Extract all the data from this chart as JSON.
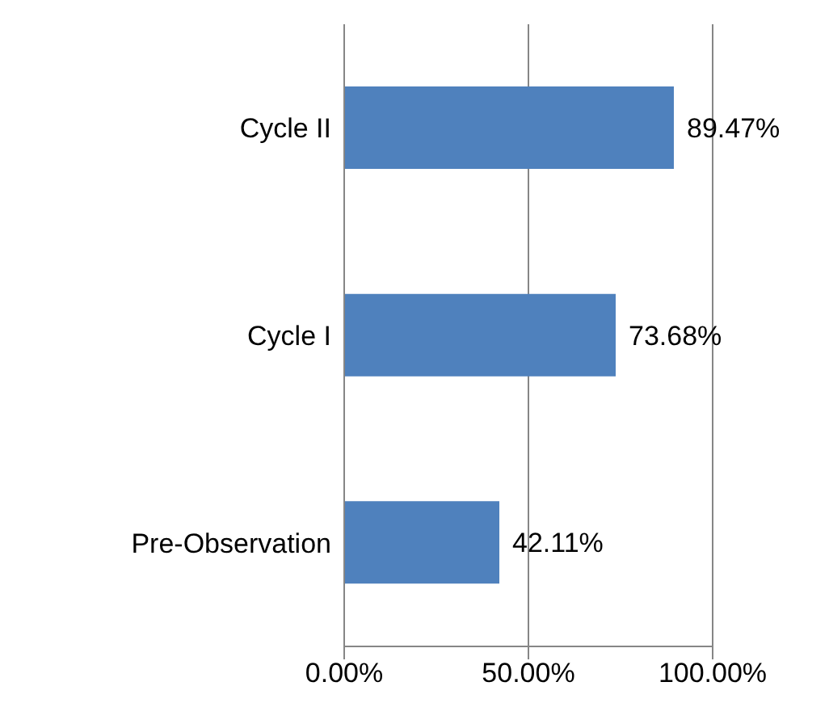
{
  "chart_data": {
    "type": "bar",
    "orientation": "horizontal",
    "categories": [
      "Cycle II",
      "Cycle I",
      "Pre-Observation"
    ],
    "values": [
      89.47,
      73.68,
      42.11
    ],
    "value_labels": [
      "89.47%",
      "73.68%",
      "42.11%"
    ],
    "color": "#4f81bd",
    "xlim": [
      0,
      100
    ],
    "xticks": [
      {
        "value": 0,
        "label": "0.00%"
      },
      {
        "value": 50,
        "label": "50.00%"
      },
      {
        "value": 100,
        "label": "100.00%"
      }
    ],
    "grid": "x",
    "legend": false
  }
}
